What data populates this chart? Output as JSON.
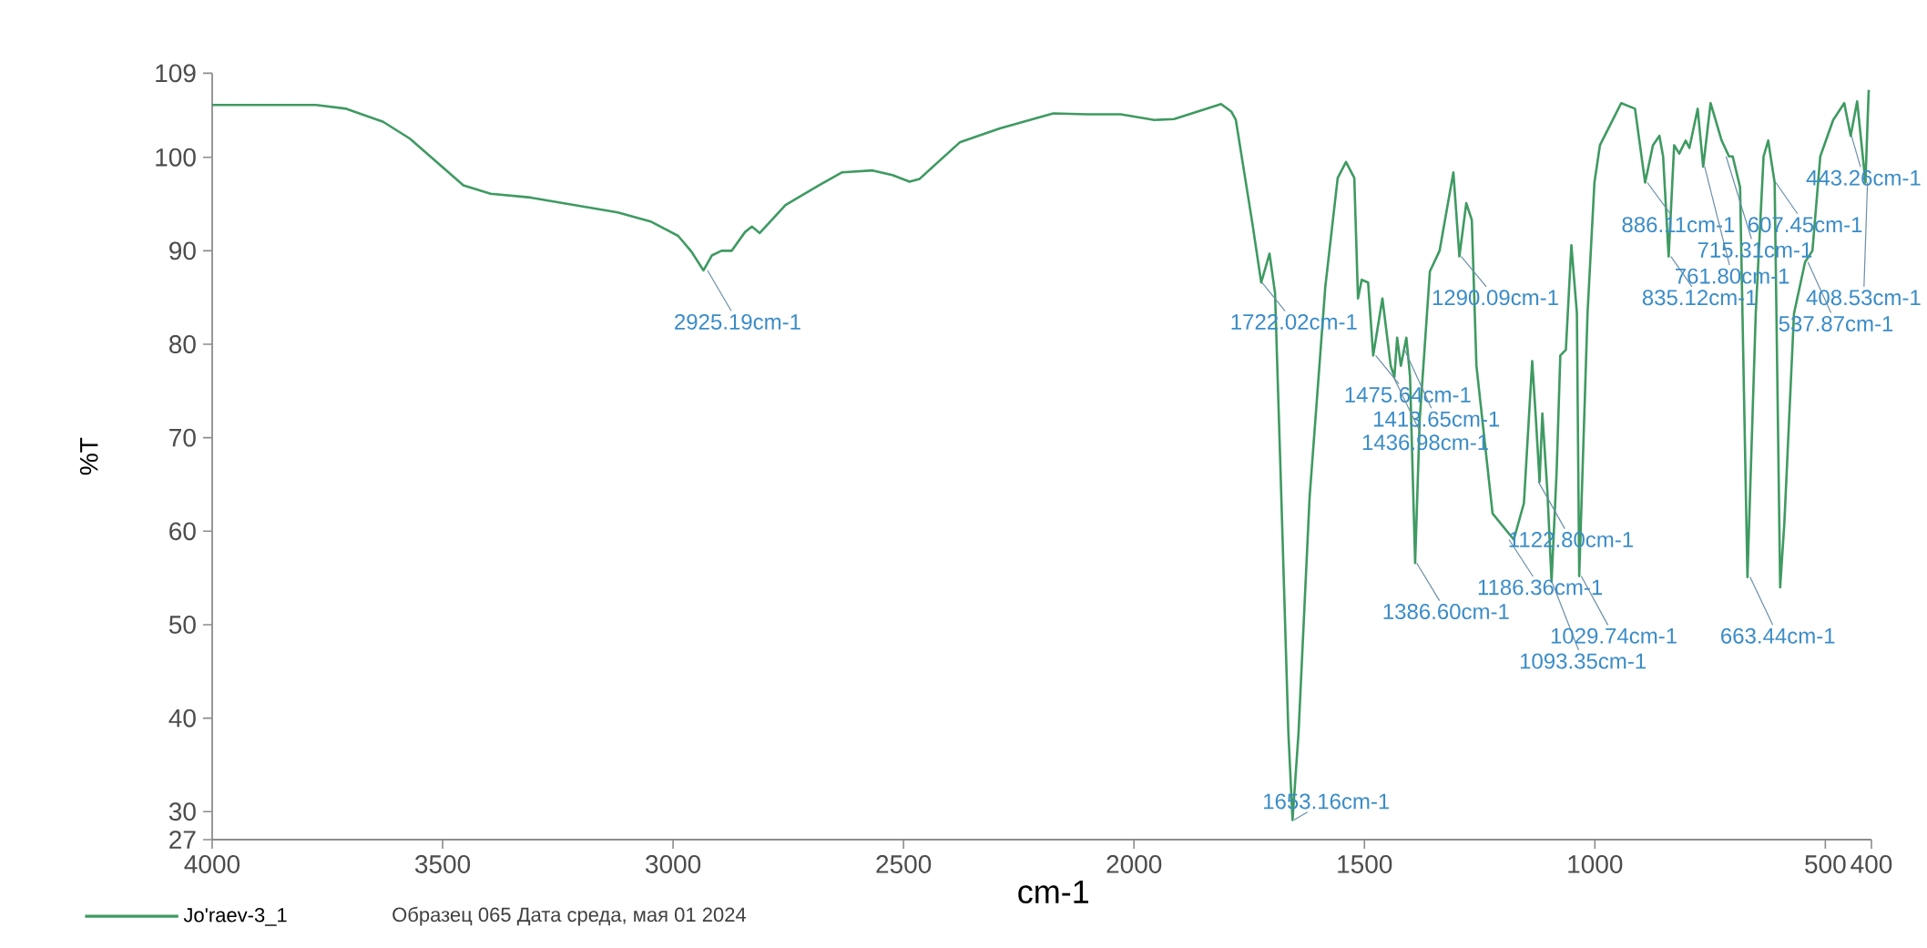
{
  "chart_data": {
    "type": "line",
    "xlabel": "cm-1",
    "ylabel": "%T",
    "xlim": [
      4000,
      400
    ],
    "ylim": [
      27,
      109
    ],
    "xticks": [
      4000,
      3500,
      3000,
      2500,
      2000,
      1500,
      1000,
      500,
      400
    ],
    "yticks": [
      27,
      30,
      40,
      50,
      60,
      70,
      80,
      90,
      100,
      109
    ],
    "grid": false,
    "legend": "bottom",
    "marker": "none",
    "line_style": "solid",
    "series": [
      {
        "name": "Jo'raev-3_1",
        "color": "#3f9a62",
        "x": [
          4000,
          3775,
          3709,
          3629,
          3571,
          3513,
          3455,
          3396,
          3309,
          3251,
          3120,
          3047,
          2989,
          2960,
          2934,
          2916,
          2895,
          2873,
          2844,
          2829,
          2812,
          2756,
          2684,
          2633,
          2567,
          2524,
          2487,
          2465,
          2378,
          2291,
          2175,
          2102,
          2029,
          1956,
          1913,
          1811,
          1789,
          1779,
          1743,
          1724,
          1706,
          1694,
          1682,
          1665,
          1656,
          1643,
          1619,
          1585,
          1558,
          1540,
          1522,
          1514,
          1506,
          1492,
          1481,
          1461,
          1443,
          1435,
          1429,
          1421,
          1409,
          1401,
          1390,
          1380,
          1358,
          1337,
          1307,
          1294,
          1279,
          1267,
          1257,
          1222,
          1176,
          1154,
          1136,
          1128,
          1120,
          1114,
          1103,
          1094,
          1083,
          1075,
          1063,
          1051,
          1039,
          1034,
          1016,
          1001,
          989,
          943,
          913,
          891,
          874,
          860,
          852,
          840,
          828,
          817,
          803,
          795,
          777,
          765,
          749,
          725,
          709,
          701,
          685,
          669,
          651,
          634,
          624,
          610,
          598,
          589,
          568,
          544,
          528,
          511,
          483,
          459,
          445,
          431,
          413,
          406,
          404
        ],
        "values": [
          105.6,
          105.6,
          105.2,
          103.8,
          102,
          99.5,
          97,
          96.1,
          95.7,
          95.2,
          94.1,
          93.1,
          91.6,
          89.9,
          87.9,
          89.5,
          90,
          90,
          92,
          92.6,
          91.9,
          94.9,
          97,
          98.4,
          98.6,
          98.1,
          97.4,
          97.7,
          101.6,
          103.1,
          104.7,
          104.6,
          104.6,
          104,
          104.1,
          105.7,
          104.9,
          104,
          92.9,
          86.6,
          89.7,
          85.5,
          66.4,
          38.4,
          29.1,
          38.4,
          63.6,
          86.1,
          97.8,
          99.5,
          97.8,
          84.9,
          86.9,
          86.6,
          78.8,
          84.9,
          77.7,
          76.5,
          80.7,
          77.7,
          80.7,
          76.5,
          56.6,
          72,
          87.8,
          90,
          98.4,
          89.4,
          95.1,
          93.3,
          77.7,
          61.9,
          59.1,
          63,
          78.2,
          72,
          65.3,
          72.6,
          64.2,
          54.6,
          66.4,
          78.8,
          79.4,
          90.6,
          83.3,
          55.2,
          83.3,
          97.3,
          101.3,
          105.8,
          105.2,
          97.3,
          101.3,
          102.3,
          100.1,
          89.4,
          101.3,
          100.4,
          101.8,
          101,
          105.2,
          99,
          105.8,
          101.8,
          100.1,
          100.1,
          96.8,
          55.1,
          83.3,
          100.1,
          101.8,
          97.3,
          54,
          60.8,
          83.3,
          88.8,
          90,
          100.1,
          104,
          105.8,
          102.3,
          106,
          97.3,
          107.1,
          107
        ]
      }
    ],
    "annotations": [
      {
        "text": "2925.19cm-1",
        "x": 2925.19,
        "y": 87.9
      },
      {
        "text": "1722.02cm-1",
        "x": 1722.02,
        "y": 86.6
      },
      {
        "text": "1653.16cm-1",
        "x": 1653.16,
        "y": 29.1
      },
      {
        "text": "1475.64cm-1",
        "x": 1475.64,
        "y": 78.8
      },
      {
        "text": "1413.65cm-1",
        "x": 1413.65,
        "y": 79.5
      },
      {
        "text": "1436.98cm-1",
        "x": 1436.98,
        "y": 76.5
      },
      {
        "text": "1386.60cm-1",
        "x": 1386.6,
        "y": 56.6
      },
      {
        "text": "1290.09cm-1",
        "x": 1290.09,
        "y": 89.4
      },
      {
        "text": "1186.36cm-1",
        "x": 1186.36,
        "y": 59.1
      },
      {
        "text": "1122.80cm-1",
        "x": 1122.8,
        "y": 65.3
      },
      {
        "text": "1093.35cm-1",
        "x": 1093.35,
        "y": 54.6
      },
      {
        "text": "1029.74cm-1",
        "x": 1029.74,
        "y": 55.2
      },
      {
        "text": "886.11cm-1",
        "x": 886.11,
        "y": 97.3
      },
      {
        "text": "835.12cm-1",
        "x": 835.12,
        "y": 89.4
      },
      {
        "text": "761.80cm-1",
        "x": 761.8,
        "y": 99
      },
      {
        "text": "715.31cm-1",
        "x": 715.31,
        "y": 100.1
      },
      {
        "text": "607.45cm-1",
        "x": 607.45,
        "y": 97.3
      },
      {
        "text": "663.44cm-1",
        "x": 663.44,
        "y": 55.1
      },
      {
        "text": "537.87cm-1",
        "x": 537.87,
        "y": 88.8
      },
      {
        "text": "443.26cm-1",
        "x": 443.26,
        "y": 102.3
      },
      {
        "text": "408.53cm-1",
        "x": 408.53,
        "y": 97.3
      },
      "Образец 065 Дата среда, мая 01 2024"
    ]
  }
}
